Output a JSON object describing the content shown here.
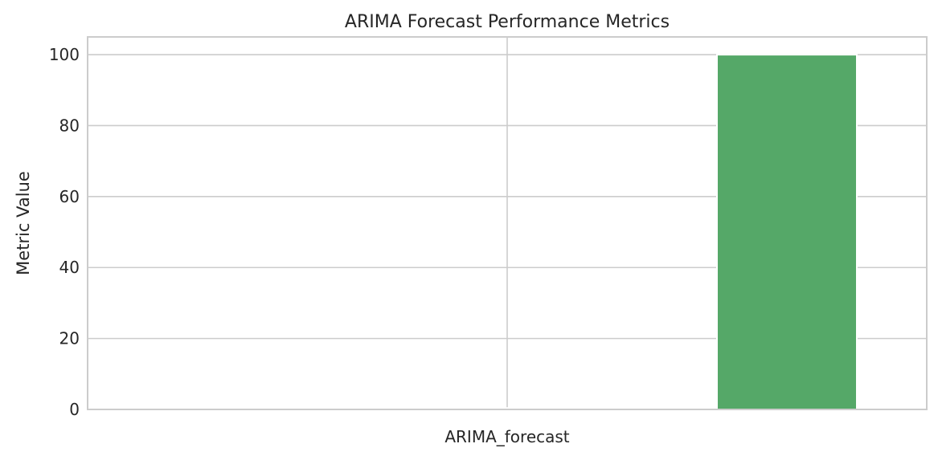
{
  "chart_data": {
    "type": "bar",
    "title": "ARIMA Forecast Performance Metrics",
    "xlabel": "",
    "ylabel": "Metric Value",
    "categories": [
      "ARIMA_forecast"
    ],
    "series": [
      {
        "values": [
          0.3
        ]
      },
      {
        "values": [
          0.4
        ]
      },
      {
        "values": [
          100
        ]
      }
    ],
    "ylim": [
      0,
      105
    ],
    "yticks": [
      0,
      20,
      40,
      60,
      80,
      100
    ],
    "ytick_labels": [
      "0",
      "20",
      "40",
      "60",
      "80",
      "100"
    ],
    "grid": true,
    "colors": [
      "#4c72b0",
      "#dd8452",
      "#55a868"
    ]
  }
}
